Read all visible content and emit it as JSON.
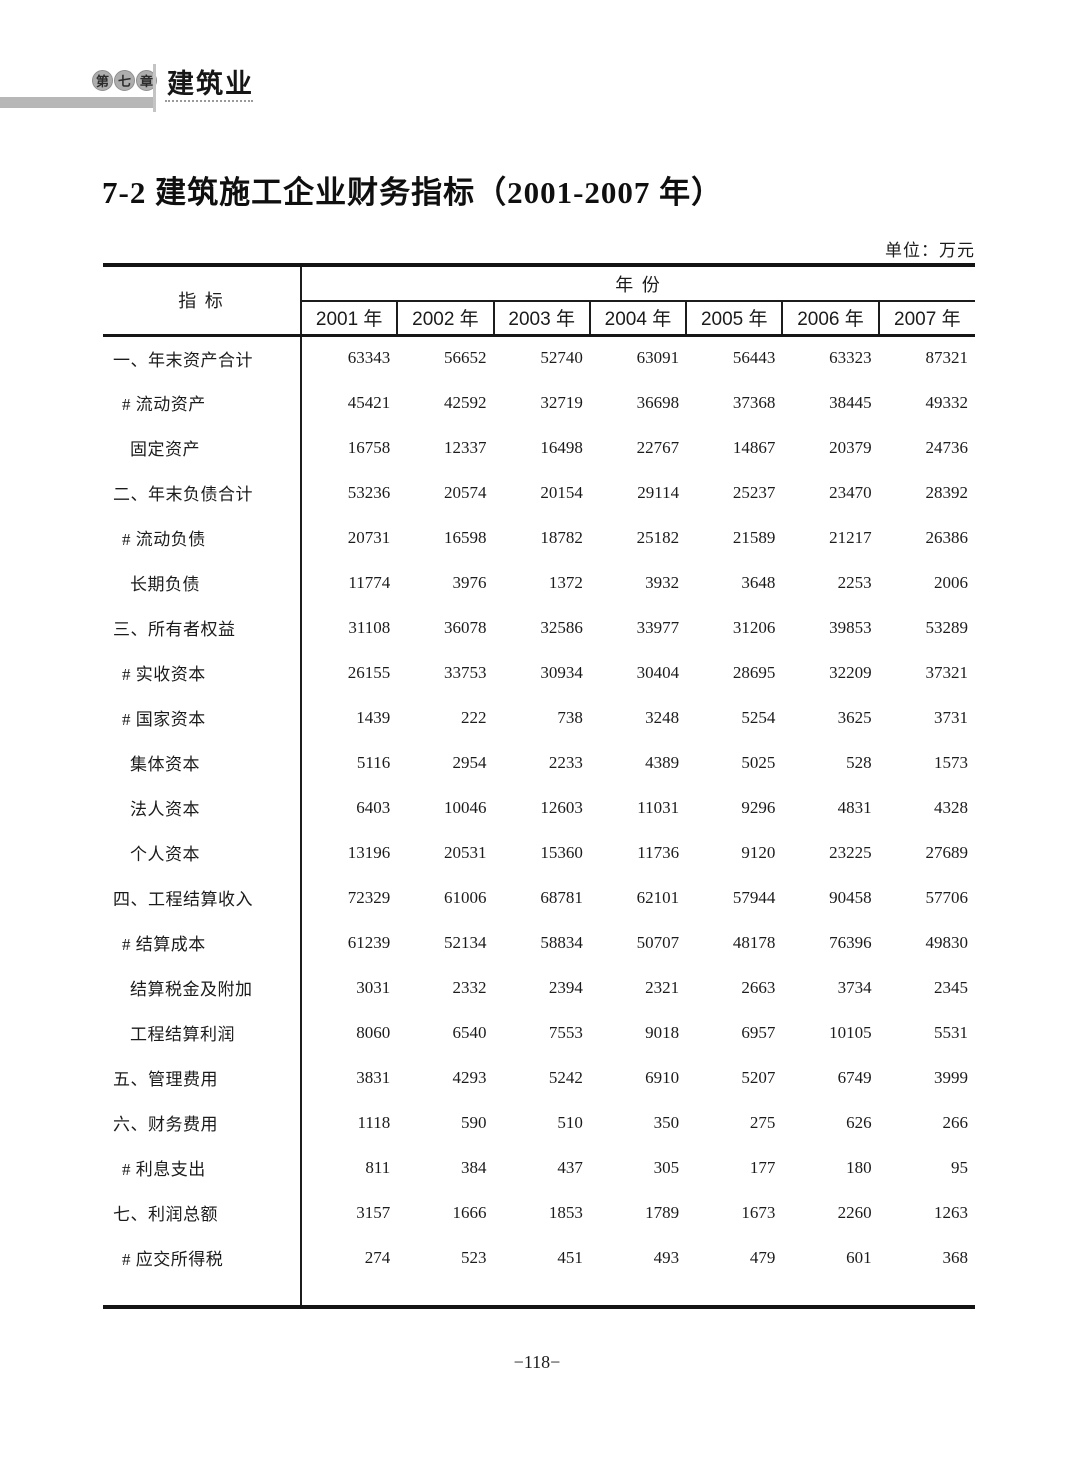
{
  "page": {
    "chapter_badge": {
      "chars": [
        "第",
        "七",
        "章"
      ],
      "chapter_title": "建筑业"
    },
    "title": "7-2 建筑施工企业财务指标（2001-2007 年）",
    "unit_label": "单位：万元",
    "page_number": "−118−"
  },
  "colors": {
    "badge_gray": "#aeaeae",
    "bar_gray": "#b7b7b7",
    "line_black": "#141414",
    "text_black": "#1b1b1b"
  },
  "table": {
    "indicator_header": "指  标",
    "year_group_header": "年  份",
    "columns": [
      "2001 年",
      "2002 年",
      "2003 年",
      "2004 年",
      "2005 年",
      "2006 年",
      "2007 年"
    ],
    "rows": [
      {
        "label": "一、年末资产合计",
        "indent": 0,
        "values": [
          63343,
          56652,
          52740,
          63091,
          56443,
          63323,
          87321
        ]
      },
      {
        "label": "# 流动资产",
        "indent": 1,
        "values": [
          45421,
          42592,
          32719,
          36698,
          37368,
          38445,
          49332
        ]
      },
      {
        "label": "固定资产",
        "indent": 2,
        "values": [
          16758,
          12337,
          16498,
          22767,
          14867,
          20379,
          24736
        ]
      },
      {
        "label": "二、年末负债合计",
        "indent": 0,
        "values": [
          53236,
          20574,
          20154,
          29114,
          25237,
          23470,
          28392
        ]
      },
      {
        "label": "# 流动负债",
        "indent": 1,
        "values": [
          20731,
          16598,
          18782,
          25182,
          21589,
          21217,
          26386
        ]
      },
      {
        "label": "长期负债",
        "indent": 2,
        "values": [
          11774,
          3976,
          1372,
          3932,
          3648,
          2253,
          2006
        ]
      },
      {
        "label": "三、所有者权益",
        "indent": 0,
        "values": [
          31108,
          36078,
          32586,
          33977,
          31206,
          39853,
          53289
        ]
      },
      {
        "label": "# 实收资本",
        "indent": 1,
        "values": [
          26155,
          33753,
          30934,
          30404,
          28695,
          32209,
          37321
        ]
      },
      {
        "label": "# 国家资本",
        "indent": 1,
        "values": [
          1439,
          222,
          738,
          3248,
          5254,
          3625,
          3731
        ]
      },
      {
        "label": "集体资本",
        "indent": 2,
        "values": [
          5116,
          2954,
          2233,
          4389,
          5025,
          528,
          1573
        ]
      },
      {
        "label": "法人资本",
        "indent": 2,
        "values": [
          6403,
          10046,
          12603,
          11031,
          9296,
          4831,
          4328
        ]
      },
      {
        "label": "个人资本",
        "indent": 2,
        "values": [
          13196,
          20531,
          15360,
          11736,
          9120,
          23225,
          27689
        ]
      },
      {
        "label": "四、工程结算收入",
        "indent": 0,
        "values": [
          72329,
          61006,
          68781,
          62101,
          57944,
          90458,
          57706
        ]
      },
      {
        "label": "# 结算成本",
        "indent": 1,
        "values": [
          61239,
          52134,
          58834,
          50707,
          48178,
          76396,
          49830
        ]
      },
      {
        "label": "结算税金及附加",
        "indent": 2,
        "values": [
          3031,
          2332,
          2394,
          2321,
          2663,
          3734,
          2345
        ]
      },
      {
        "label": "工程结算利润",
        "indent": 2,
        "values": [
          8060,
          6540,
          7553,
          9018,
          6957,
          10105,
          5531
        ]
      },
      {
        "label": "五、管理费用",
        "indent": 0,
        "values": [
          3831,
          4293,
          5242,
          6910,
          5207,
          6749,
          3999
        ]
      },
      {
        "label": "六、财务费用",
        "indent": 0,
        "values": [
          1118,
          590,
          510,
          350,
          275,
          626,
          266
        ]
      },
      {
        "label": "# 利息支出",
        "indent": 1,
        "values": [
          811,
          384,
          437,
          305,
          177,
          180,
          95
        ]
      },
      {
        "label": "七、利润总额",
        "indent": 0,
        "values": [
          3157,
          1666,
          1853,
          1789,
          1673,
          2260,
          1263
        ]
      },
      {
        "label": "# 应交所得税",
        "indent": 1,
        "values": [
          274,
          523,
          451,
          493,
          479,
          601,
          368
        ]
      }
    ]
  }
}
